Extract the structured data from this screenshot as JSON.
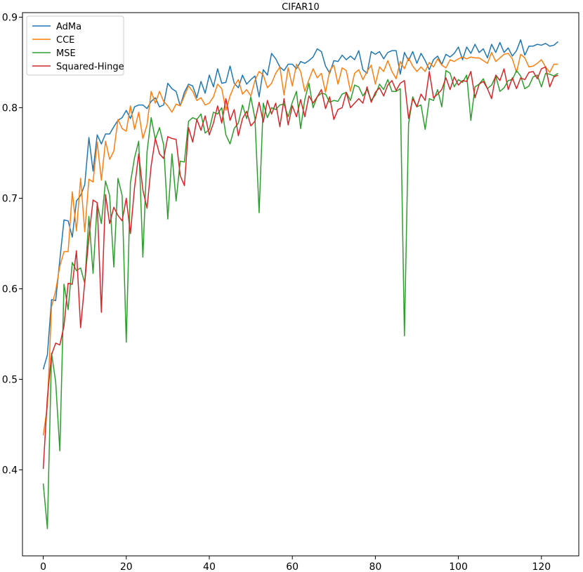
{
  "chart_data": {
    "type": "line",
    "title": "CIFAR10",
    "xlabel": "",
    "ylabel": "",
    "xlim": [
      -5,
      129
    ],
    "ylim": [
      0.305,
      0.905
    ],
    "xticks": [
      0,
      20,
      40,
      60,
      80,
      100,
      120
    ],
    "yticks": [
      0.4,
      0.5,
      0.6,
      0.7,
      0.8,
      0.9
    ],
    "grid": false,
    "legend": {
      "placement": "top-left"
    },
    "series": [
      {
        "name": "AdMa",
        "color": "#1f77b4",
        "values": [
          0.511,
          0.527,
          0.588,
          0.587,
          0.632,
          0.676,
          0.675,
          0.657,
          0.697,
          0.703,
          0.715,
          0.767,
          0.73,
          0.77,
          0.76,
          0.771,
          0.771,
          0.779,
          0.786,
          0.789,
          0.797,
          0.788,
          0.801,
          0.803,
          0.803,
          0.799,
          0.807,
          0.811,
          0.801,
          0.803,
          0.827,
          0.821,
          0.818,
          0.802,
          0.817,
          0.826,
          0.824,
          0.811,
          0.829,
          0.816,
          0.836,
          0.823,
          0.843,
          0.827,
          0.828,
          0.846,
          0.827,
          0.822,
          0.836,
          0.826,
          0.831,
          0.835,
          0.812,
          0.842,
          0.836,
          0.86,
          0.854,
          0.845,
          0.841,
          0.848,
          0.848,
          0.843,
          0.851,
          0.849,
          0.852,
          0.856,
          0.865,
          0.862,
          0.846,
          0.838,
          0.852,
          0.851,
          0.858,
          0.853,
          0.857,
          0.853,
          0.863,
          0.842,
          0.838,
          0.862,
          0.859,
          0.862,
          0.854,
          0.861,
          0.863,
          0.863,
          0.837,
          0.861,
          0.852,
          0.862,
          0.849,
          0.86,
          0.852,
          0.842,
          0.853,
          0.857,
          0.848,
          0.859,
          0.856,
          0.86,
          0.867,
          0.853,
          0.867,
          0.86,
          0.87,
          0.861,
          0.865,
          0.855,
          0.87,
          0.861,
          0.872,
          0.861,
          0.866,
          0.857,
          0.863,
          0.875,
          0.858,
          0.868,
          0.868,
          0.87,
          0.869,
          0.871,
          0.868,
          0.869,
          0.873
        ]
      },
      {
        "name": "CCE",
        "color": "#ff7f0e",
        "values": [
          0.438,
          0.47,
          0.58,
          0.598,
          0.625,
          0.641,
          0.641,
          0.707,
          0.664,
          0.722,
          0.663,
          0.721,
          0.718,
          0.762,
          0.72,
          0.763,
          0.743,
          0.752,
          0.787,
          0.777,
          0.774,
          0.802,
          0.776,
          0.795,
          0.766,
          0.781,
          0.818,
          0.805,
          0.818,
          0.807,
          0.802,
          0.795,
          0.804,
          0.802,
          0.813,
          0.824,
          0.818,
          0.808,
          0.811,
          0.803,
          0.805,
          0.812,
          0.826,
          0.821,
          0.797,
          0.813,
          0.824,
          0.831,
          0.815,
          0.82,
          0.813,
          0.83,
          0.84,
          0.836,
          0.822,
          0.827,
          0.838,
          0.845,
          0.814,
          0.844,
          0.824,
          0.848,
          0.84,
          0.818,
          0.831,
          0.843,
          0.833,
          0.838,
          0.817,
          0.841,
          0.847,
          0.826,
          0.844,
          0.841,
          0.818,
          0.838,
          0.842,
          0.831,
          0.84,
          0.847,
          0.826,
          0.845,
          0.84,
          0.852,
          0.84,
          0.832,
          0.851,
          0.843,
          0.855,
          0.846,
          0.84,
          0.845,
          0.84,
          0.85,
          0.845,
          0.854,
          0.847,
          0.844,
          0.853,
          0.851,
          0.854,
          0.856,
          0.854,
          0.856,
          0.855,
          0.855,
          0.852,
          0.849,
          0.861,
          0.851,
          0.855,
          0.859,
          0.86,
          0.854,
          0.839,
          0.859,
          0.855,
          0.845,
          0.846,
          0.849,
          0.853,
          0.845,
          0.839,
          0.848,
          0.848
        ]
      },
      {
        "name": "MSE",
        "color": "#2ca02c",
        "values": [
          0.385,
          0.335,
          0.529,
          0.497,
          0.421,
          0.605,
          0.577,
          0.629,
          0.62,
          0.623,
          0.606,
          0.68,
          0.617,
          0.694,
          0.672,
          0.719,
          0.703,
          0.624,
          0.722,
          0.703,
          0.541,
          0.717,
          0.745,
          0.763,
          0.635,
          0.751,
          0.789,
          0.765,
          0.778,
          0.759,
          0.677,
          0.749,
          0.697,
          0.741,
          0.74,
          0.785,
          0.789,
          0.787,
          0.793,
          0.772,
          0.776,
          0.795,
          0.793,
          0.8,
          0.77,
          0.76,
          0.777,
          0.783,
          0.803,
          0.788,
          0.812,
          0.788,
          0.684,
          0.805,
          0.789,
          0.8,
          0.798,
          0.803,
          0.804,
          0.79,
          0.806,
          0.818,
          0.777,
          0.809,
          0.827,
          0.8,
          0.812,
          0.816,
          0.815,
          0.806,
          0.808,
          0.807,
          0.815,
          0.817,
          0.808,
          0.825,
          0.823,
          0.813,
          0.82,
          0.808,
          0.814,
          0.826,
          0.82,
          0.831,
          0.818,
          0.818,
          0.821,
          0.548,
          0.782,
          0.812,
          0.801,
          0.803,
          0.776,
          0.81,
          0.808,
          0.82,
          0.801,
          0.841,
          0.838,
          0.823,
          0.831,
          0.828,
          0.836,
          0.786,
          0.823,
          0.826,
          0.832,
          0.821,
          0.825,
          0.835,
          0.818,
          0.822,
          0.83,
          0.831,
          0.841,
          0.835,
          0.821,
          0.824,
          0.834,
          0.836,
          0.823,
          0.838,
          0.837,
          0.835,
          0.838
        ]
      },
      {
        "name": "Squared-Hinge",
        "color": "#d62728",
        "values": [
          0.401,
          0.48,
          0.527,
          0.54,
          0.538,
          0.559,
          0.606,
          0.605,
          0.642,
          0.557,
          0.607,
          0.657,
          0.698,
          0.695,
          0.574,
          0.704,
          0.672,
          0.69,
          0.681,
          0.675,
          0.7,
          0.661,
          0.712,
          0.749,
          0.709,
          0.689,
          0.736,
          0.766,
          0.749,
          0.744,
          0.768,
          0.766,
          0.765,
          0.725,
          0.714,
          0.778,
          0.762,
          0.787,
          0.775,
          0.791,
          0.77,
          0.783,
          0.802,
          0.783,
          0.81,
          0.786,
          0.798,
          0.769,
          0.788,
          0.796,
          0.78,
          0.785,
          0.806,
          0.784,
          0.808,
          0.793,
          0.805,
          0.779,
          0.81,
          0.781,
          0.802,
          0.79,
          0.809,
          0.79,
          0.813,
          0.805,
          0.812,
          0.82,
          0.799,
          0.812,
          0.787,
          0.798,
          0.8,
          0.817,
          0.8,
          0.805,
          0.81,
          0.805,
          0.823,
          0.806,
          0.817,
          0.822,
          0.813,
          0.825,
          0.83,
          0.819,
          0.827,
          0.83,
          0.788,
          0.81,
          0.801,
          0.815,
          0.808,
          0.84,
          0.811,
          0.815,
          0.82,
          0.833,
          0.82,
          0.834,
          0.825,
          0.83,
          0.829,
          0.84,
          0.811,
          0.826,
          0.829,
          0.821,
          0.81,
          0.836,
          0.83,
          0.843,
          0.82,
          0.833,
          0.821,
          0.833,
          0.831,
          0.839,
          0.84,
          0.832,
          0.843,
          0.845,
          0.823,
          0.834,
          0.836
        ]
      }
    ]
  }
}
